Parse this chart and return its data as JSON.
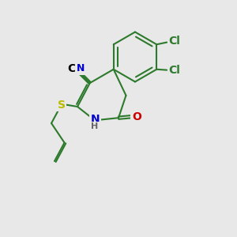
{
  "bg_color": "#e8e8e8",
  "bond_color": "#2d7a2d",
  "bond_width": 1.5,
  "dbo": 0.06,
  "atom_colors": {
    "C": "#000000",
    "N": "#0000cc",
    "O": "#cc0000",
    "S": "#bbbb00",
    "Cl": "#2d7a2d",
    "H": "#666666"
  },
  "font_size": 10,
  "font_size_h": 8,
  "xlim": [
    0,
    10
  ],
  "ylim": [
    0,
    10
  ]
}
